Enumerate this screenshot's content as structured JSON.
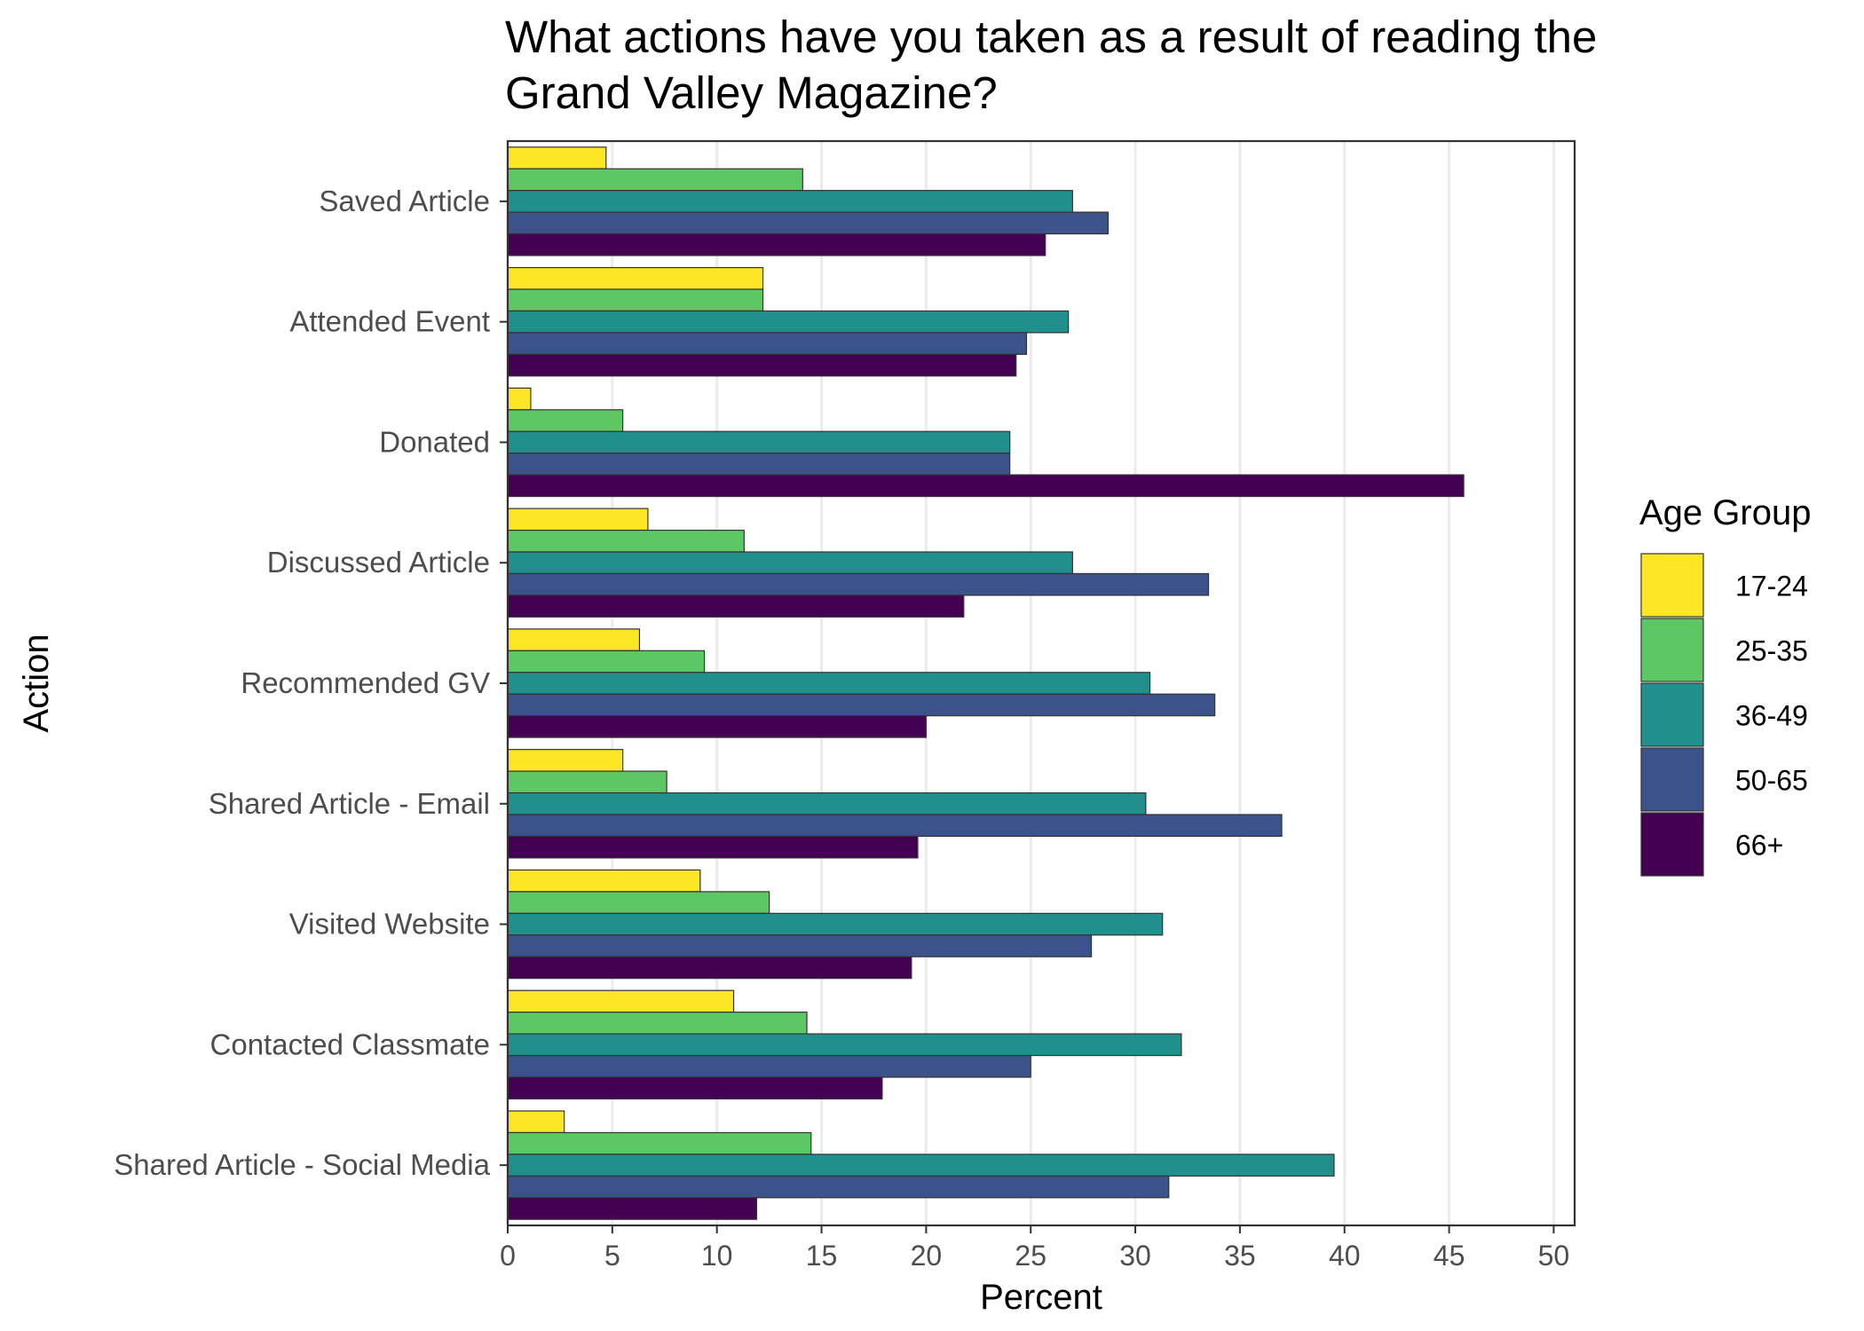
{
  "chart_data": {
    "type": "bar",
    "orientation": "horizontal",
    "title": "What actions have you taken as a result of reading the Grand Valley Magazine?",
    "title_lines": [
      "What actions have you taken as a result of reading the",
      "Grand Valley Magazine?"
    ],
    "xlabel": "Percent",
    "ylabel": "Action",
    "xlim": [
      0,
      51
    ],
    "x_ticks": [
      0,
      5,
      10,
      15,
      20,
      25,
      30,
      35,
      40,
      45,
      50
    ],
    "grid": "vertical",
    "legend_title": "Age Group",
    "legend_position": "right",
    "categories": [
      "Saved Article",
      "Attended Event",
      "Donated",
      "Discussed Article",
      "Recommended GV",
      "Shared Article - Email",
      "Visited Website",
      "Contacted Classmate",
      "Shared Article - Social Media"
    ],
    "series": [
      {
        "name": "17-24",
        "color": "#FDE725",
        "values": [
          4.7,
          12.2,
          1.1,
          6.7,
          6.3,
          5.5,
          9.2,
          10.8,
          2.7
        ]
      },
      {
        "name": "25-35",
        "color": "#5DC863",
        "values": [
          14.1,
          12.2,
          5.5,
          11.3,
          9.4,
          7.6,
          12.5,
          14.3,
          14.5
        ]
      },
      {
        "name": "36-49",
        "color": "#21908C",
        "values": [
          27.0,
          26.8,
          24.0,
          27.0,
          30.7,
          30.5,
          31.3,
          32.2,
          39.5
        ]
      },
      {
        "name": "50-65",
        "color": "#3B528B",
        "values": [
          28.7,
          24.8,
          24.0,
          33.5,
          33.8,
          37.0,
          27.9,
          25.0,
          31.6
        ]
      },
      {
        "name": "66+",
        "color": "#440154",
        "values": [
          25.7,
          24.3,
          45.7,
          21.8,
          20.0,
          19.6,
          19.3,
          17.9,
          11.9
        ]
      }
    ]
  }
}
